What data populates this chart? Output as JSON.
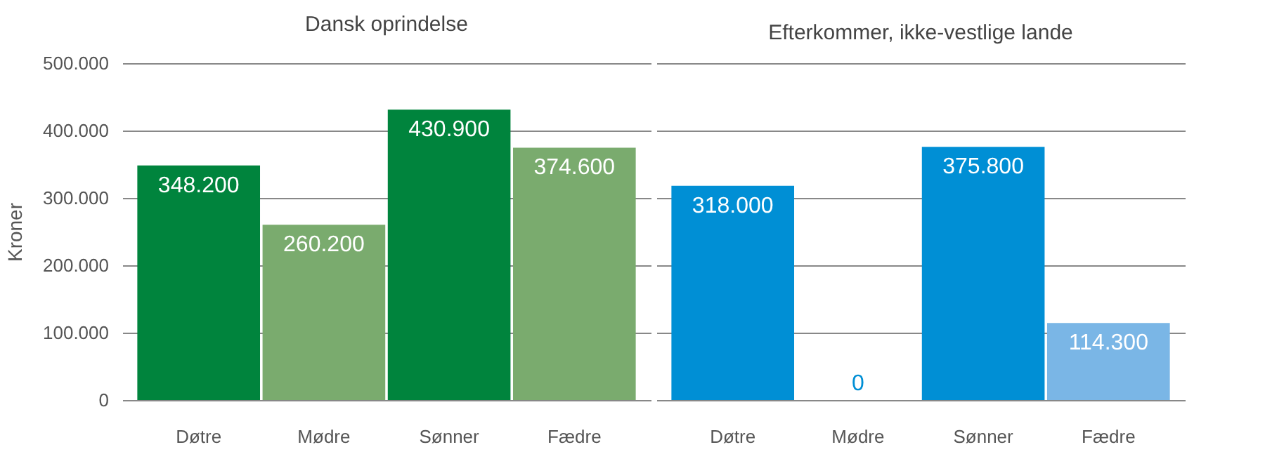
{
  "chart_data": [
    {
      "type": "bar",
      "title": "Dansk oprindelse",
      "ylabel": "Kroner",
      "categories": [
        "Døtre",
        "Mødre",
        "Sønner",
        "Fædre"
      ],
      "values": [
        348200,
        260200,
        430900,
        374600
      ],
      "colors": [
        "#00843d",
        "#7aab6e",
        "#00843d",
        "#7aab6e"
      ],
      "value_labels": [
        "348.200",
        "260.200",
        "430.900",
        "374.600"
      ],
      "ylim": [
        0,
        500000
      ],
      "yticks": [
        0,
        {
          "value": 100000,
          "label": "100.000"
        },
        {
          "value": 200000,
          "label": "200.000"
        },
        {
          "value": 300000,
          "label": "300.000"
        },
        {
          "value": 400000,
          "label": "400.000"
        },
        {
          "value": 500000,
          "label": "500.000"
        }
      ],
      "grid": "y"
    },
    {
      "type": "bar",
      "title": "Efterkommer, ikke-vestlige lande",
      "categories": [
        "Døtre",
        "Mødre",
        "Sønner",
        "Fædre"
      ],
      "values": [
        318000,
        0,
        375800,
        114300
      ],
      "colors": [
        "#008fd5",
        "#008fd5",
        "#008fd5",
        "#7ab6e6"
      ],
      "value_labels": [
        "318.000",
        "0",
        "375.800",
        "114.300"
      ],
      "ylim": [
        0,
        500000
      ],
      "yticks": [
        0,
        100000,
        200000,
        300000,
        400000,
        500000
      ],
      "grid": "y",
      "tick_labels": "x"
    }
  ]
}
